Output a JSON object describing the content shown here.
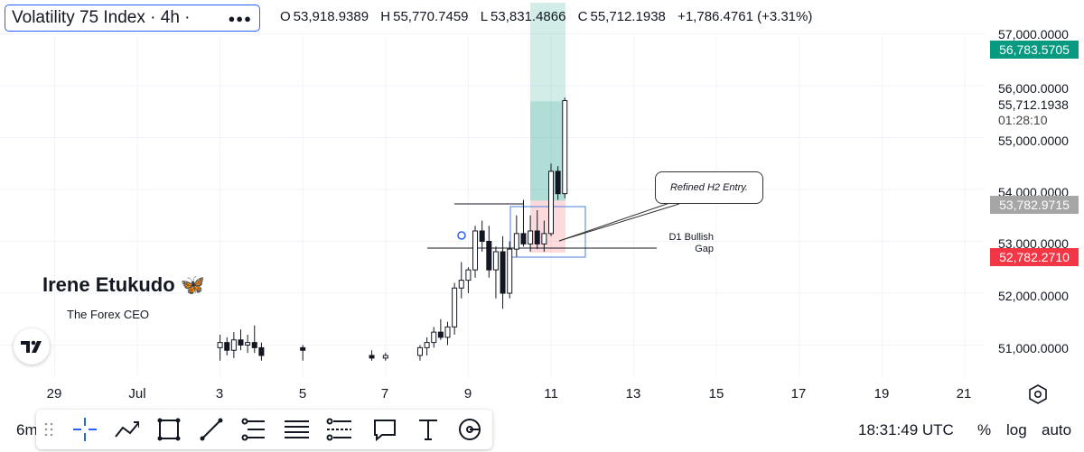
{
  "header": {
    "symbol": "Volatility 75 Index · 4h ·",
    "menu_icon": "more-dots-icon",
    "ohlc": {
      "o_label": "O",
      "o": "53,918.9389",
      "h_label": "H",
      "h": "55,770.7459",
      "l_label": "L",
      "l": "53,831.4866",
      "c_label": "C",
      "c": "55,712.1938",
      "change": "+1,786.4761 (+3.31%)"
    }
  },
  "watermark": {
    "author": "Irene Etukudo 🦋",
    "subtitle": "The Forex CEO"
  },
  "annotations": {
    "entry_note": "Refined H2 Entry.",
    "gap_note_1": "D1 Bullish",
    "gap_note_2": "Gap"
  },
  "price_axis": {
    "labels": [
      "57,000.0000",
      "56,000.0000",
      "55,000.0000",
      "54,000.0000",
      "53,000.0000",
      "52,000.0000",
      "51,000.0000"
    ],
    "current_price": "55,712.1938",
    "countdown": "01:28:10",
    "tp_badge": "56,783.5705",
    "entry_badge": "53,782.9715",
    "sl_badge": "52,782.2710",
    "tp_color": "#089981",
    "entry_color": "#a6a6a6",
    "sl_color": "#f23645"
  },
  "time_axis": {
    "labels": [
      "29",
      "Jul",
      "3",
      "5",
      "7",
      "9",
      "11",
      "13",
      "15",
      "17",
      "19",
      "21"
    ]
  },
  "bottom_bar": {
    "range": "6m",
    "time": "18:31:49 UTC",
    "percent": "%",
    "log": "log",
    "auto": "auto"
  },
  "toolbar_icons": [
    "drag-handle-icon",
    "crosshair-icon",
    "trend-icon",
    "rectangle-icon",
    "line-icon",
    "fib-icon",
    "horizontal-lines-icon",
    "pitchfork-icon",
    "comment-icon",
    "text-icon",
    "measure-icon"
  ],
  "chart_data": {
    "type": "candlestick",
    "title": "Volatility 75 Index · 4h",
    "y_range": [
      50700,
      57700
    ],
    "x_range": [
      "Jun 28",
      "Jul 22"
    ],
    "x_ticks": [
      "29",
      "Jul",
      "3",
      "5",
      "7",
      "9",
      "11",
      "13",
      "15",
      "17",
      "19",
      "21"
    ],
    "series": [
      {
        "x": "Jul 3 00:00",
        "o": 50950,
        "h": 51200,
        "l": 50700,
        "c": 51050
      },
      {
        "x": "Jul 3 04:00",
        "o": 51050,
        "h": 51150,
        "l": 50800,
        "c": 50900
      },
      {
        "x": "Jul 3 08:00",
        "o": 50900,
        "h": 51250,
        "l": 50750,
        "c": 51100
      },
      {
        "x": "Jul 3 12:00",
        "o": 51100,
        "h": 51300,
        "l": 50900,
        "c": 51000
      },
      {
        "x": "Jul 3 16:00",
        "o": 51000,
        "h": 51200,
        "l": 50850,
        "c": 51050
      },
      {
        "x": "Jul 3 20:00",
        "o": 51050,
        "h": 51380,
        "l": 50850,
        "c": 50950
      },
      {
        "x": "Jul 4 00:00",
        "o": 50950,
        "h": 51050,
        "l": 50700,
        "c": 50800
      },
      {
        "x": "Jul 5 00:00",
        "o": 50950,
        "h": 51000,
        "l": 50700,
        "c": 50900
      },
      {
        "x": "Jul 6 16:00",
        "o": 50800,
        "h": 50900,
        "l": 50700,
        "c": 50750
      },
      {
        "x": "Jul 7 00:00",
        "o": 50750,
        "h": 50850,
        "l": 50700,
        "c": 50800
      },
      {
        "x": "Jul 7 20:00",
        "o": 50800,
        "h": 51000,
        "l": 50700,
        "c": 50950
      },
      {
        "x": "Jul 8 00:00",
        "o": 50950,
        "h": 51150,
        "l": 50800,
        "c": 51050
      },
      {
        "x": "Jul 8 04:00",
        "o": 51050,
        "h": 51350,
        "l": 50950,
        "c": 51250
      },
      {
        "x": "Jul 8 08:00",
        "o": 51250,
        "h": 51500,
        "l": 51100,
        "c": 51150
      },
      {
        "x": "Jul 8 12:00",
        "o": 51150,
        "h": 51450,
        "l": 51000,
        "c": 51350
      },
      {
        "x": "Jul 8 16:00",
        "o": 51350,
        "h": 52200,
        "l": 51200,
        "c": 52100
      },
      {
        "x": "Jul 8 20:00",
        "o": 52100,
        "h": 52600,
        "l": 51900,
        "c": 52250
      },
      {
        "x": "Jul 9 00:00",
        "o": 52250,
        "h": 52500,
        "l": 52000,
        "c": 52450
      },
      {
        "x": "Jul 9 04:00",
        "o": 52450,
        "h": 53300,
        "l": 52300,
        "c": 53200
      },
      {
        "x": "Jul 9 08:00",
        "o": 53200,
        "h": 53400,
        "l": 52800,
        "c": 53000
      },
      {
        "x": "Jul 9 12:00",
        "o": 53000,
        "h": 53300,
        "l": 52300,
        "c": 52450
      },
      {
        "x": "Jul 9 16:00",
        "o": 52450,
        "h": 52900,
        "l": 51900,
        "c": 52800
      },
      {
        "x": "Jul 9 20:00",
        "o": 52800,
        "h": 53100,
        "l": 51700,
        "c": 52000
      },
      {
        "x": "Jul 10 00:00",
        "o": 52000,
        "h": 53000,
        "l": 51900,
        "c": 52850
      },
      {
        "x": "Jul 10 04:00",
        "o": 52850,
        "h": 53500,
        "l": 52700,
        "c": 53150
      },
      {
        "x": "Jul 10 08:00",
        "o": 53150,
        "h": 53800,
        "l": 52900,
        "c": 52950
      },
      {
        "x": "Jul 10 12:00",
        "o": 52950,
        "h": 53500,
        "l": 52800,
        "c": 53200
      },
      {
        "x": "Jul 10 16:00",
        "o": 53200,
        "h": 53600,
        "l": 52850,
        "c": 52950
      },
      {
        "x": "Jul 10 20:00",
        "o": 52950,
        "h": 53400,
        "l": 52800,
        "c": 53150
      },
      {
        "x": "Jul 11 00:00",
        "o": 53150,
        "h": 54500,
        "l": 53100,
        "c": 54350
      },
      {
        "x": "Jul 11 04:00",
        "o": 54350,
        "h": 54450,
        "l": 53800,
        "c": 53919
      },
      {
        "x": "Jul 11 08:00",
        "o": 53919,
        "h": 55771,
        "l": 53831,
        "c": 55712
      }
    ],
    "positions": {
      "take_profit": 56783.5705,
      "entry": 53782.9715,
      "stop_loss": 52782.271
    },
    "lines": {
      "d1_gap_level": 52950,
      "upper_level": 53800
    },
    "text": [
      "Refined H2 Entry.",
      "D1 Bullish Gap"
    ]
  }
}
